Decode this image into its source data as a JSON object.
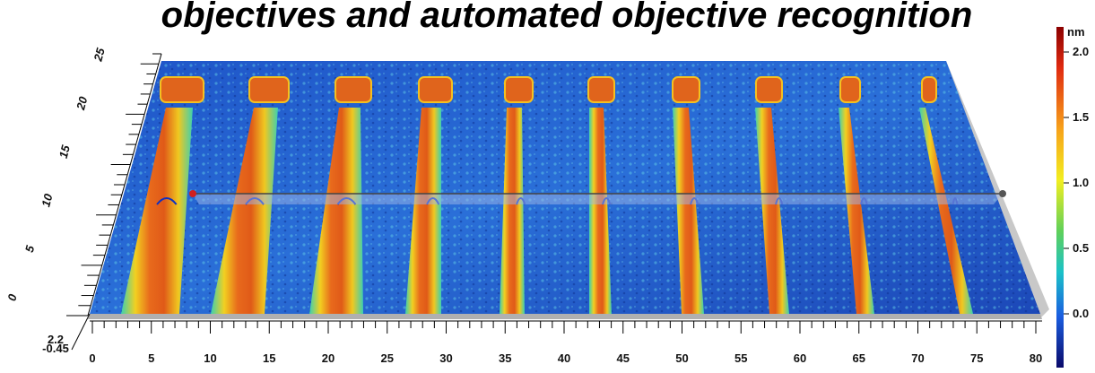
{
  "title": "objectives and automated objective recognition",
  "x_axis": {
    "ticks": [
      "0",
      "5",
      "10",
      "15",
      "20",
      "25",
      "30",
      "35",
      "40",
      "45",
      "50",
      "55",
      "60",
      "65",
      "70",
      "75",
      "80"
    ]
  },
  "y_axis": {
    "ticks": [
      "0",
      "5",
      "10",
      "15",
      "20",
      "25"
    ]
  },
  "z_axis": {
    "ticks": [
      "2.2",
      "-0.45"
    ]
  },
  "colorbar": {
    "unit": "nm",
    "ticks": [
      "2.0",
      "1.5",
      "1.0",
      "0.5",
      "0.0"
    ]
  }
}
